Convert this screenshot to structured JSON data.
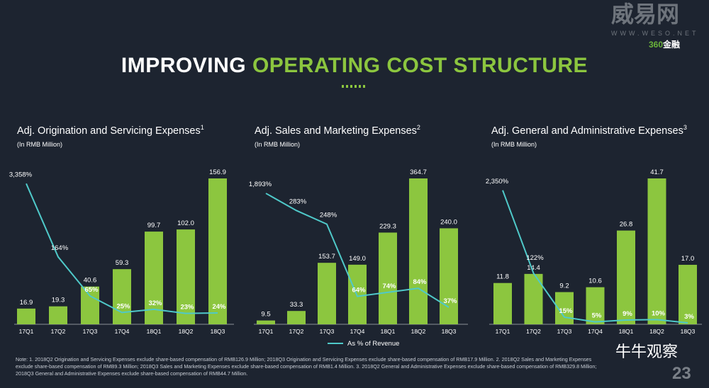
{
  "header": {
    "title_white": "IMPROVING ",
    "title_green": "OPERATING COST STRUCTURE"
  },
  "watermark": {
    "brand": "威易网",
    "url": "WWW.WESO.NET",
    "logo_num": "360",
    "logo_text": "金融",
    "wechat": "牛牛观察"
  },
  "page_number": "23",
  "legend": {
    "line_label": "As % of Revenue"
  },
  "note": "Note: 1. 2018Q2 Origination and Servicing  Expenses exclude share-based compensation of RMB126.9 Million; 2018Q3 Origination and Servicing  Expenses exclude share-based compensation of RMB17.9 Million. 2. 2018Q2 Sales and Marketing Expenses exclude share-based compensation of RMB9.3 Million; 2018Q3 Sales and Marketing Expenses exclude share-based compensation of RMB1.4 Million. 3. 2018Q2 General and Administrative Expenses exclude share-based compensation of RMB329.8 Million; 2018Q3 General and Administrative Expenses exclude share-based compensation of RMB44.7 Million.",
  "colors": {
    "bar": "#8cc63f",
    "line": "#4fc9c9",
    "bg": "#1d2430"
  },
  "chart_data": [
    {
      "type": "bar",
      "title": "Adj. Origination and Servicing Expenses",
      "footnote": "1",
      "subtitle": "(In RMB Million)",
      "categories": [
        "17Q1",
        "17Q2",
        "17Q3",
        "17Q4",
        "18Q1",
        "18Q2",
        "18Q3"
      ],
      "values": [
        16.9,
        19.3,
        40.6,
        59.3,
        99.7,
        102.0,
        156.9
      ],
      "value_labels": [
        "16.9",
        "19.3",
        "40.6",
        "59.3",
        "99.7",
        "102.0",
        "156.9"
      ],
      "line": {
        "name": "As % of Revenue",
        "values": [
          3358,
          164,
          65,
          25,
          32,
          23,
          24
        ],
        "labels": [
          "3,358%",
          "164%",
          "65%",
          "25%",
          "32%",
          "23%",
          "24%"
        ]
      }
    },
    {
      "type": "bar",
      "title": "Adj. Sales and Marketing Expenses",
      "footnote": "2",
      "subtitle": "(In RMB Million)",
      "categories": [
        "17Q1",
        "17Q2",
        "17Q3",
        "17Q4",
        "18Q1",
        "18Q2",
        "18Q3"
      ],
      "values": [
        9.5,
        33.3,
        153.7,
        149.0,
        229.3,
        364.7,
        240.0
      ],
      "value_labels": [
        "9.5",
        "33.3",
        "153.7",
        "149.0",
        "229.3",
        "364.7",
        "240.0"
      ],
      "line": {
        "name": "As % of Revenue",
        "values": [
          1893,
          283,
          248,
          64,
          74,
          84,
          37
        ],
        "labels": [
          "1,893%",
          "283%",
          "248%",
          "64%",
          "74%",
          "84%",
          "37%"
        ]
      }
    },
    {
      "type": "bar",
      "title": "Adj. General and Administrative Expenses",
      "footnote": "3",
      "subtitle": "(In RMB Million)",
      "categories": [
        "17Q1",
        "17Q2",
        "17Q3",
        "17Q4",
        "18Q1",
        "18Q2",
        "18Q3"
      ],
      "values": [
        11.8,
        14.4,
        9.2,
        10.6,
        26.8,
        41.7,
        17.0
      ],
      "value_labels": [
        "11.8",
        "14.4",
        "9.2",
        "10.6",
        "26.8",
        "41.7",
        "17.0"
      ],
      "line": {
        "name": "As % of Revenue",
        "values": [
          2350,
          122,
          15,
          5,
          9,
          10,
          3
        ],
        "labels": [
          "2,350%",
          "122%",
          "15%",
          "5%",
          "9%",
          "10%",
          "3%"
        ]
      }
    }
  ]
}
